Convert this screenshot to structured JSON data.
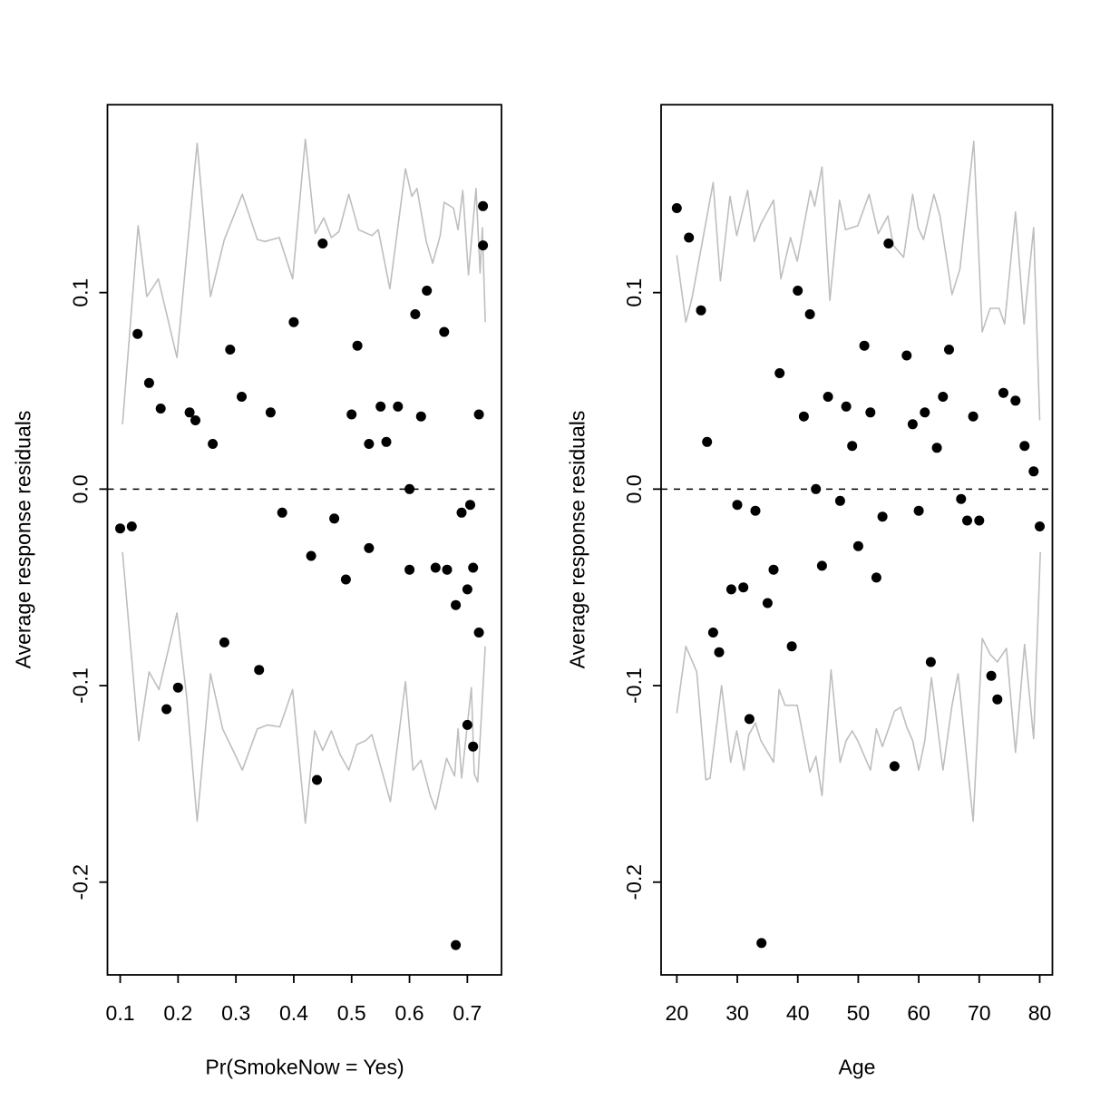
{
  "figure": {
    "background": "#ffffff",
    "point_color": "#000000",
    "band_color": "#bebebe",
    "frame_color": "#000000",
    "zero_line_style": "dashed"
  },
  "chart_data": [
    {
      "type": "scatter",
      "title": "",
      "xlabel": "Pr(SmokeNow = Yes)",
      "ylabel": "Average response residuals",
      "xlim": [
        0.078,
        0.759
      ],
      "ylim": [
        -0.2472,
        0.1956
      ],
      "x_ticks": [
        0.1,
        0.2,
        0.3,
        0.4,
        0.5,
        0.6,
        0.7
      ],
      "x_tick_labels": [
        "0.1",
        "0.2",
        "0.3",
        "0.4",
        "0.5",
        "0.6",
        "0.7"
      ],
      "y_ticks": [
        0.1,
        0.0,
        -0.1,
        -0.2
      ],
      "y_tick_labels": [
        "0.1",
        "0.0",
        "-0.1",
        "-0.2"
      ],
      "zero_line": 0.0,
      "grid": false,
      "legend": "none",
      "points": [
        [
          0.13,
          0.079
        ],
        [
          0.15,
          0.054
        ],
        [
          0.17,
          0.041
        ],
        [
          0.22,
          0.039
        ],
        [
          0.23,
          0.035
        ],
        [
          0.26,
          0.023
        ],
        [
          0.29,
          0.071
        ],
        [
          0.31,
          0.047
        ],
        [
          0.36,
          0.039
        ],
        [
          0.4,
          0.085
        ],
        [
          0.45,
          0.125
        ],
        [
          0.5,
          0.038
        ],
        [
          0.51,
          0.073
        ],
        [
          0.53,
          0.023
        ],
        [
          0.55,
          0.042
        ],
        [
          0.56,
          0.024
        ],
        [
          0.58,
          0.042
        ],
        [
          0.6,
          0.0
        ],
        [
          0.61,
          0.089
        ],
        [
          0.62,
          0.037
        ],
        [
          0.63,
          0.101
        ],
        [
          0.66,
          0.08
        ],
        [
          0.72,
          0.038
        ],
        [
          0.727,
          0.144
        ],
        [
          0.727,
          0.124
        ],
        [
          0.1,
          -0.02
        ],
        [
          0.12,
          -0.019
        ],
        [
          0.38,
          -0.012
        ],
        [
          0.47,
          -0.015
        ],
        [
          0.43,
          -0.034
        ],
        [
          0.53,
          -0.03
        ],
        [
          0.49,
          -0.046
        ],
        [
          0.6,
          -0.041
        ],
        [
          0.645,
          -0.04
        ],
        [
          0.665,
          -0.041
        ],
        [
          0.71,
          -0.04
        ],
        [
          0.7,
          -0.051
        ],
        [
          0.68,
          -0.059
        ],
        [
          0.72,
          -0.073
        ],
        [
          0.705,
          -0.008
        ],
        [
          0.69,
          -0.012
        ],
        [
          0.28,
          -0.078
        ],
        [
          0.34,
          -0.092
        ],
        [
          0.2,
          -0.101
        ],
        [
          0.18,
          -0.112
        ],
        [
          0.44,
          -0.148
        ],
        [
          0.7,
          -0.12
        ],
        [
          0.71,
          -0.131
        ],
        [
          0.68,
          -0.232
        ]
      ],
      "upper_band": [
        [
          0.104,
          0.033
        ],
        [
          0.131,
          0.134
        ],
        [
          0.146,
          0.098
        ],
        [
          0.166,
          0.107
        ],
        [
          0.198,
          0.067
        ],
        [
          0.233,
          0.176
        ],
        [
          0.256,
          0.098
        ],
        [
          0.28,
          0.127
        ],
        [
          0.311,
          0.15
        ],
        [
          0.337,
          0.127
        ],
        [
          0.35,
          0.126
        ],
        [
          0.375,
          0.128
        ],
        [
          0.398,
          0.107
        ],
        [
          0.42,
          0.178
        ],
        [
          0.437,
          0.13
        ],
        [
          0.452,
          0.138
        ],
        [
          0.465,
          0.128
        ],
        [
          0.478,
          0.131
        ],
        [
          0.495,
          0.15
        ],
        [
          0.512,
          0.132
        ],
        [
          0.535,
          0.129
        ],
        [
          0.546,
          0.132
        ],
        [
          0.566,
          0.102
        ],
        [
          0.593,
          0.163
        ],
        [
          0.604,
          0.149
        ],
        [
          0.613,
          0.153
        ],
        [
          0.629,
          0.126
        ],
        [
          0.64,
          0.115
        ],
        [
          0.653,
          0.129
        ],
        [
          0.66,
          0.146
        ],
        [
          0.676,
          0.143
        ],
        [
          0.684,
          0.132
        ],
        [
          0.692,
          0.152
        ],
        [
          0.702,
          0.109
        ],
        [
          0.715,
          0.153
        ],
        [
          0.722,
          0.11
        ],
        [
          0.726,
          0.133
        ],
        [
          0.731,
          0.085
        ]
      ],
      "lower_band": [
        [
          0.104,
          -0.032
        ],
        [
          0.132,
          -0.128
        ],
        [
          0.15,
          -0.093
        ],
        [
          0.167,
          -0.102
        ],
        [
          0.198,
          -0.063
        ],
        [
          0.215,
          -0.106
        ],
        [
          0.233,
          -0.169
        ],
        [
          0.256,
          -0.094
        ],
        [
          0.277,
          -0.122
        ],
        [
          0.295,
          -0.133
        ],
        [
          0.311,
          -0.143
        ],
        [
          0.337,
          -0.122
        ],
        [
          0.355,
          -0.12
        ],
        [
          0.376,
          -0.121
        ],
        [
          0.398,
          -0.102
        ],
        [
          0.42,
          -0.17
        ],
        [
          0.436,
          -0.123
        ],
        [
          0.45,
          -0.133
        ],
        [
          0.465,
          -0.123
        ],
        [
          0.48,
          -0.135
        ],
        [
          0.495,
          -0.143
        ],
        [
          0.509,
          -0.13
        ],
        [
          0.524,
          -0.128
        ],
        [
          0.535,
          -0.125
        ],
        [
          0.567,
          -0.159
        ],
        [
          0.593,
          -0.098
        ],
        [
          0.606,
          -0.143
        ],
        [
          0.62,
          -0.138
        ],
        [
          0.636,
          -0.156
        ],
        [
          0.645,
          -0.163
        ],
        [
          0.664,
          -0.137
        ],
        [
          0.678,
          -0.146
        ],
        [
          0.684,
          -0.122
        ],
        [
          0.69,
          -0.147
        ],
        [
          0.707,
          -0.101
        ],
        [
          0.712,
          -0.145
        ],
        [
          0.718,
          -0.149
        ],
        [
          0.731,
          -0.08
        ]
      ]
    },
    {
      "type": "scatter",
      "title": "",
      "xlabel": "Age",
      "ylabel": "Average response residuals",
      "xlim": [
        17.4,
        82.1
      ],
      "ylim": [
        -0.2472,
        0.1956
      ],
      "x_ticks": [
        20,
        30,
        40,
        50,
        60,
        70,
        80
      ],
      "x_tick_labels": [
        "20",
        "30",
        "40",
        "50",
        "60",
        "70",
        "80"
      ],
      "y_ticks": [
        0.1,
        0.0,
        -0.1,
        -0.2
      ],
      "y_tick_labels": [
        "0.1",
        "0.0",
        "-0.1",
        "-0.2"
      ],
      "zero_line": 0.0,
      "grid": false,
      "legend": "none",
      "points": [
        [
          20,
          0.143
        ],
        [
          22,
          0.128
        ],
        [
          24,
          0.091
        ],
        [
          25,
          0.024
        ],
        [
          37,
          0.059
        ],
        [
          40,
          0.101
        ],
        [
          41,
          0.037
        ],
        [
          42,
          0.089
        ],
        [
          43,
          0.0
        ],
        [
          45,
          0.047
        ],
        [
          48,
          0.042
        ],
        [
          49,
          0.022
        ],
        [
          51,
          0.073
        ],
        [
          52,
          0.039
        ],
        [
          55,
          0.125
        ],
        [
          58,
          0.068
        ],
        [
          59,
          0.033
        ],
        [
          61,
          0.039
        ],
        [
          63,
          0.021
        ],
        [
          64,
          0.047
        ],
        [
          65,
          0.071
        ],
        [
          69,
          0.037
        ],
        [
          74,
          0.049
        ],
        [
          76,
          0.045
        ],
        [
          77.5,
          0.022
        ],
        [
          79,
          0.009
        ],
        [
          30,
          -0.008
        ],
        [
          33,
          -0.011
        ],
        [
          47,
          -0.006
        ],
        [
          54,
          -0.014
        ],
        [
          60,
          -0.011
        ],
        [
          67,
          -0.005
        ],
        [
          68,
          -0.016
        ],
        [
          70,
          -0.016
        ],
        [
          80,
          -0.019
        ],
        [
          50,
          -0.029
        ],
        [
          36,
          -0.041
        ],
        [
          44,
          -0.039
        ],
        [
          53,
          -0.045
        ],
        [
          29,
          -0.051
        ],
        [
          31,
          -0.05
        ],
        [
          35,
          -0.058
        ],
        [
          26,
          -0.073
        ],
        [
          27,
          -0.083
        ],
        [
          39,
          -0.08
        ],
        [
          62,
          -0.088
        ],
        [
          72,
          -0.095
        ],
        [
          73,
          -0.107
        ],
        [
          32,
          -0.117
        ],
        [
          56,
          -0.141
        ],
        [
          34,
          -0.231
        ]
      ],
      "upper_band": [
        [
          20,
          0.119
        ],
        [
          21.5,
          0.085
        ],
        [
          22.5,
          0.097
        ],
        [
          26,
          0.156
        ],
        [
          27.2,
          0.106
        ],
        [
          28.8,
          0.149
        ],
        [
          29.9,
          0.129
        ],
        [
          31.7,
          0.152
        ],
        [
          32.8,
          0.126
        ],
        [
          33.9,
          0.135
        ],
        [
          36,
          0.147
        ],
        [
          37.2,
          0.107
        ],
        [
          38.8,
          0.128
        ],
        [
          39.9,
          0.116
        ],
        [
          42.1,
          0.152
        ],
        [
          42.8,
          0.144
        ],
        [
          44,
          0.164
        ],
        [
          45.3,
          0.096
        ],
        [
          46.9,
          0.147
        ],
        [
          47.9,
          0.132
        ],
        [
          49.9,
          0.134
        ],
        [
          51.8,
          0.15
        ],
        [
          53.3,
          0.13
        ],
        [
          54.9,
          0.139
        ],
        [
          55.8,
          0.124
        ],
        [
          57.5,
          0.118
        ],
        [
          59,
          0.15
        ],
        [
          59.9,
          0.133
        ],
        [
          60.8,
          0.127
        ],
        [
          62.5,
          0.15
        ],
        [
          63.5,
          0.139
        ],
        [
          65.5,
          0.099
        ],
        [
          66.8,
          0.112
        ],
        [
          69.1,
          0.177
        ],
        [
          70.5,
          0.08
        ],
        [
          71.8,
          0.092
        ],
        [
          73.3,
          0.092
        ],
        [
          74.2,
          0.084
        ],
        [
          76,
          0.141
        ],
        [
          77.4,
          0.084
        ],
        [
          79,
          0.133
        ],
        [
          80,
          0.035
        ]
      ],
      "lower_band": [
        [
          20,
          -0.114
        ],
        [
          21.5,
          -0.08
        ],
        [
          23.3,
          -0.093
        ],
        [
          24.8,
          -0.148
        ],
        [
          25.5,
          -0.147
        ],
        [
          27.4,
          -0.1
        ],
        [
          28.9,
          -0.139
        ],
        [
          29.9,
          -0.123
        ],
        [
          31.1,
          -0.143
        ],
        [
          31.9,
          -0.125
        ],
        [
          33,
          -0.119
        ],
        [
          33.9,
          -0.128
        ],
        [
          36,
          -0.139
        ],
        [
          36.9,
          -0.102
        ],
        [
          37.9,
          -0.11
        ],
        [
          39.9,
          -0.11
        ],
        [
          42,
          -0.144
        ],
        [
          43,
          -0.136
        ],
        [
          44,
          -0.156
        ],
        [
          45.5,
          -0.092
        ],
        [
          47,
          -0.139
        ],
        [
          48,
          -0.128
        ],
        [
          49,
          -0.123
        ],
        [
          49.9,
          -0.128
        ],
        [
          52,
          -0.143
        ],
        [
          53,
          -0.122
        ],
        [
          54,
          -0.131
        ],
        [
          56,
          -0.113
        ],
        [
          57,
          -0.111
        ],
        [
          58,
          -0.121
        ],
        [
          59,
          -0.128
        ],
        [
          60,
          -0.143
        ],
        [
          61,
          -0.128
        ],
        [
          62.1,
          -0.096
        ],
        [
          64,
          -0.143
        ],
        [
          65.5,
          -0.11
        ],
        [
          66.5,
          -0.094
        ],
        [
          69,
          -0.169
        ],
        [
          70.5,
          -0.076
        ],
        [
          71.8,
          -0.084
        ],
        [
          73,
          -0.088
        ],
        [
          74.5,
          -0.081
        ],
        [
          76,
          -0.134
        ],
        [
          77.5,
          -0.079
        ],
        [
          79,
          -0.127
        ],
        [
          80.1,
          -0.032
        ]
      ]
    }
  ]
}
